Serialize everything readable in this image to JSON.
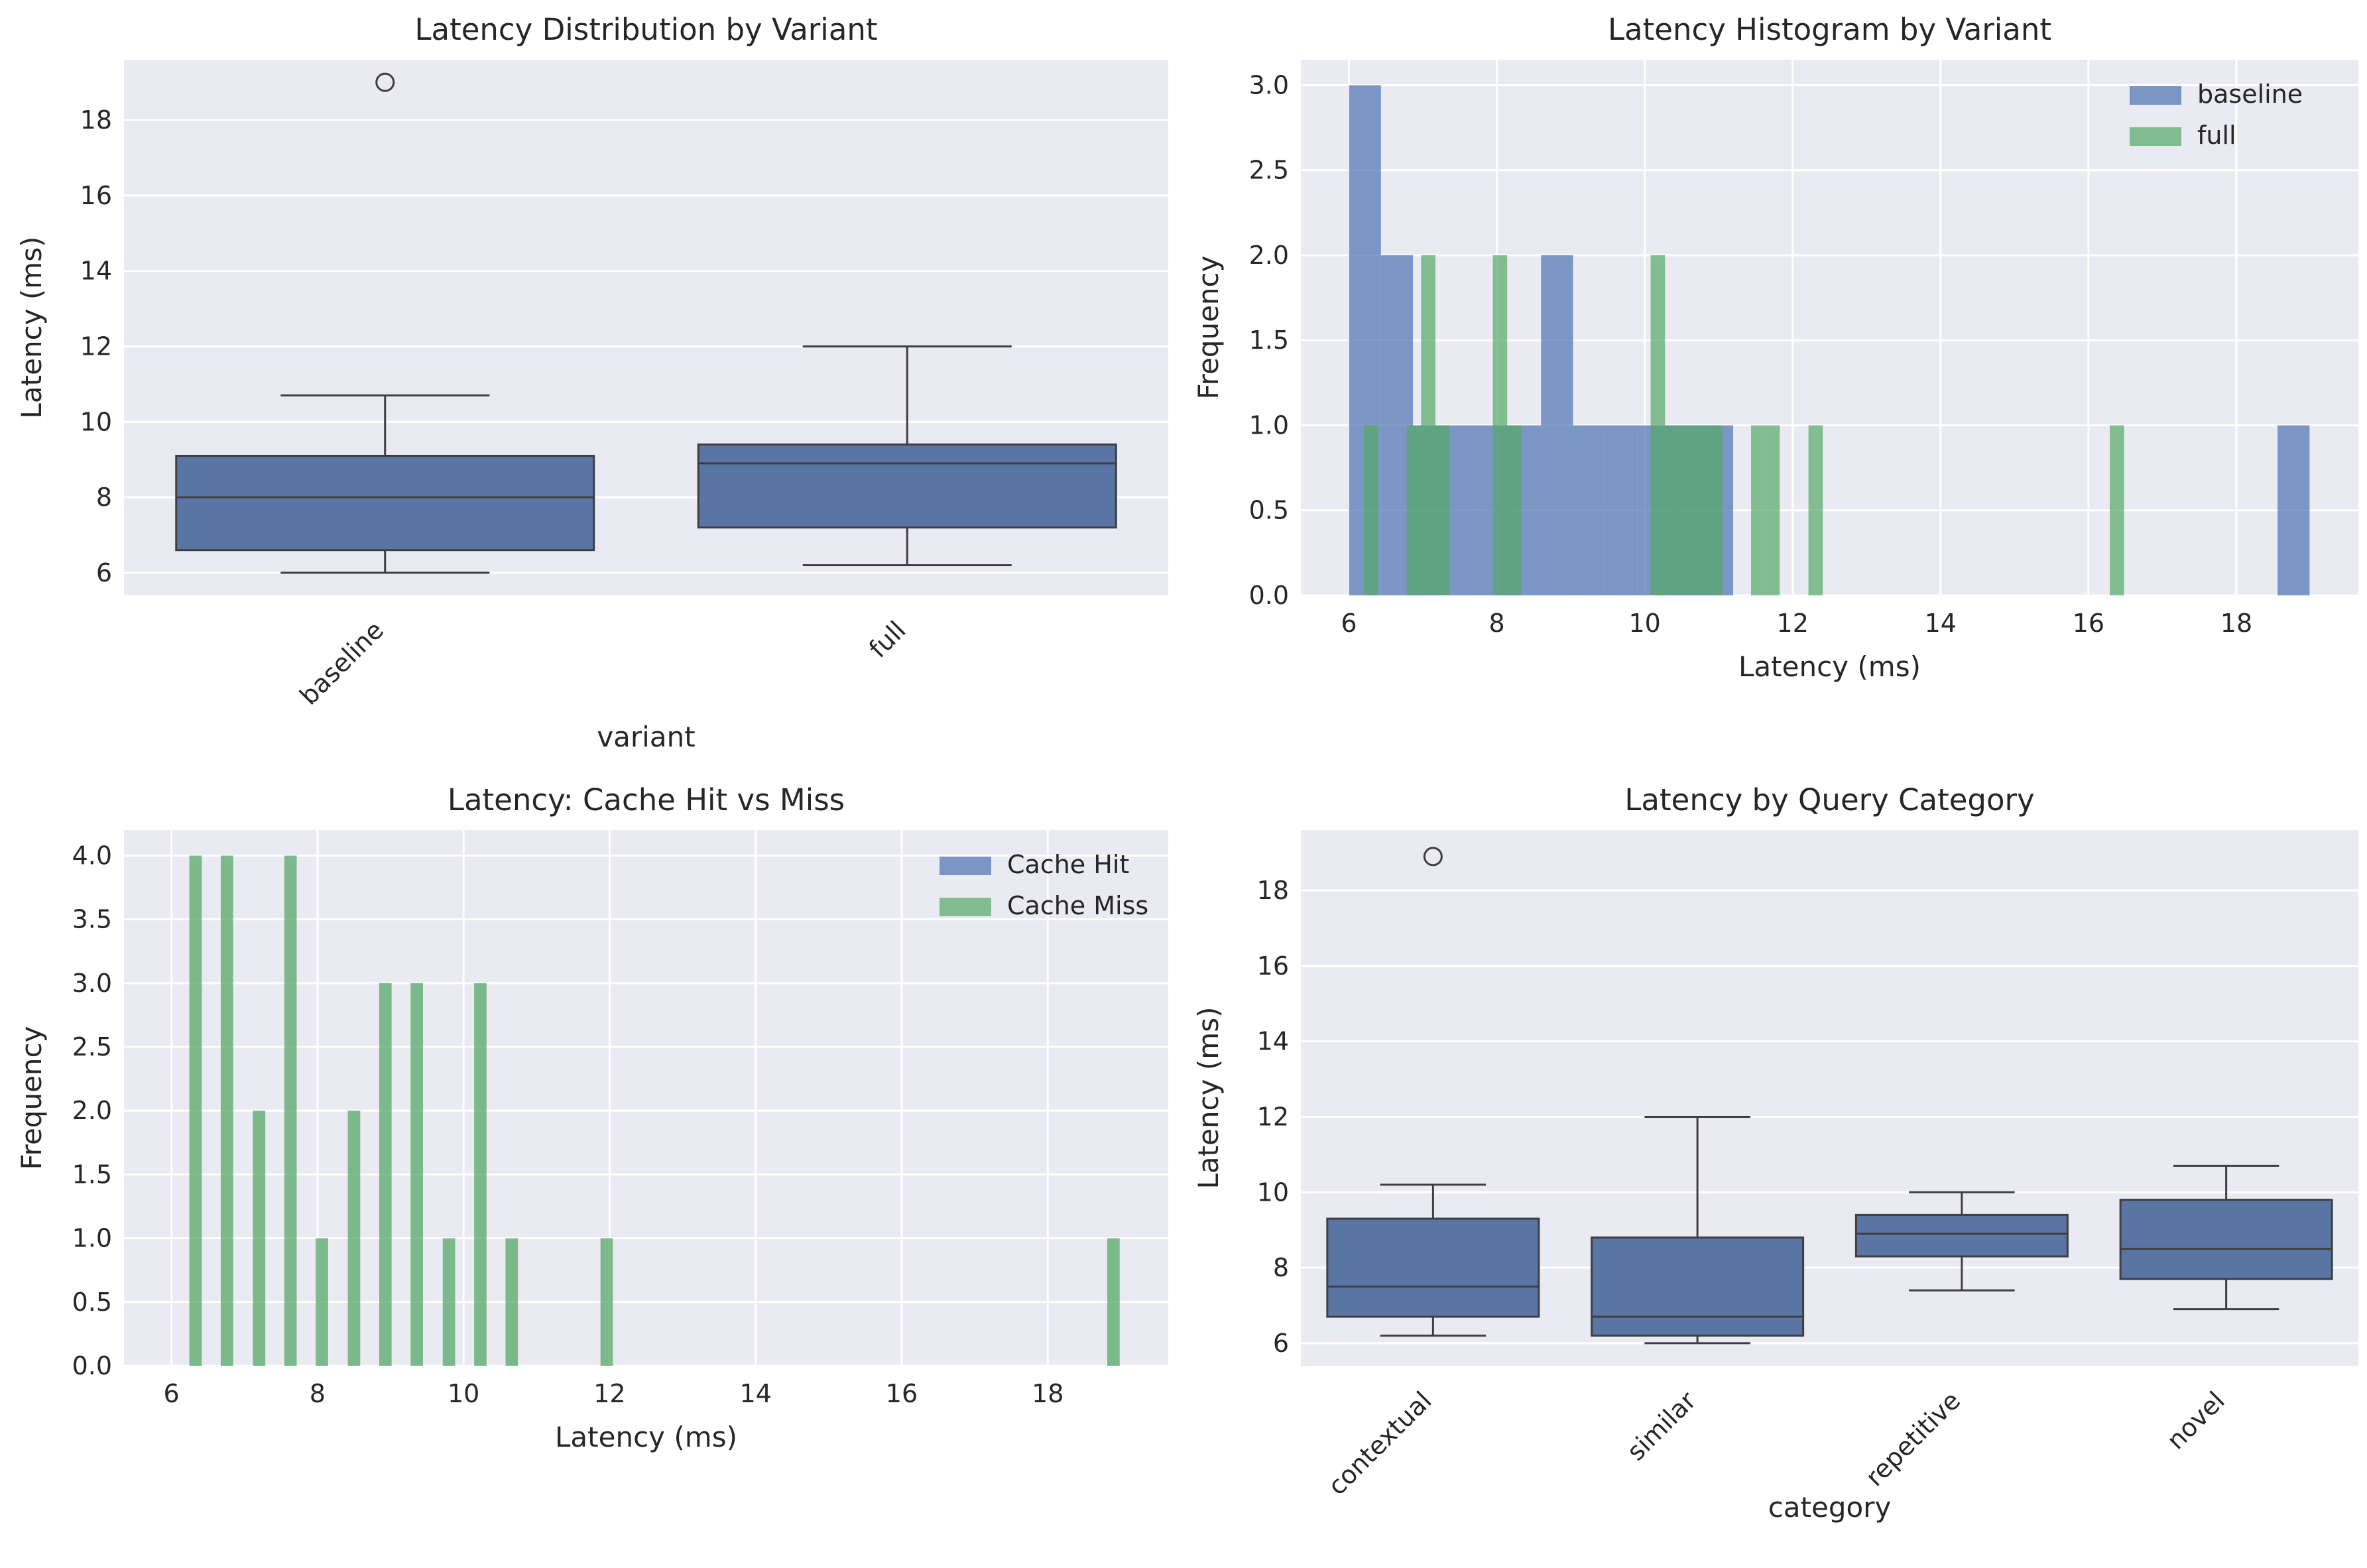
{
  "colors": {
    "panel_bg": "#EAEAF2",
    "grid": "#FFFFFF",
    "blue": "#4C72B0",
    "box_fill": "#5975A4",
    "green": "#55A868",
    "line": "#3F3F3F",
    "text": "#262626"
  },
  "chart_data": [
    {
      "id": "variant-box",
      "type": "box",
      "title": "Latency Distribution by Variant",
      "xlabel": "variant",
      "ylabel": "Latency (ms)",
      "ylim": [
        5.4,
        19.6
      ],
      "yticks": [
        6,
        8,
        10,
        12,
        14,
        16,
        18
      ],
      "grid": true,
      "categories": [
        "baseline",
        "full"
      ],
      "boxes": [
        {
          "whislo": 6.0,
          "q1": 6.6,
          "med": 8.0,
          "q3": 9.1,
          "whishi": 10.7,
          "fliers": [
            19.0
          ]
        },
        {
          "whislo": 6.2,
          "q1": 7.2,
          "med": 8.9,
          "q3": 9.4,
          "whishi": 12.0,
          "fliers": []
        }
      ]
    },
    {
      "id": "variant-hist",
      "type": "histogram",
      "title": "Latency Histogram by Variant",
      "xlabel": "Latency (ms)",
      "ylabel": "Frequency",
      "xlim": [
        5.35,
        19.65
      ],
      "ylim": [
        0,
        3.15
      ],
      "xticks": [
        6,
        8,
        10,
        12,
        14,
        16,
        18
      ],
      "yticks": [
        0.0,
        0.5,
        1.0,
        1.5,
        2.0,
        2.5,
        3.0
      ],
      "grid": true,
      "legend": "upper right",
      "series": [
        {
          "name": "baseline",
          "color": "#4C72B0",
          "bin_start": 6.0,
          "bin_width": 0.433,
          "counts": [
            3,
            2,
            1,
            1,
            1,
            1,
            2,
            1,
            1,
            1,
            1,
            1,
            0,
            0,
            0,
            0,
            0,
            0,
            0,
            0,
            0,
            0,
            0,
            0,
            0,
            0,
            0,
            0,
            0,
            1
          ]
        },
        {
          "name": "full",
          "color": "#55A868",
          "bin_start": 6.2,
          "bin_width": 0.194,
          "counts": [
            1,
            0,
            0,
            1,
            2,
            1,
            0,
            0,
            0,
            2,
            1,
            0,
            0,
            0,
            0,
            0,
            0,
            0,
            0,
            0,
            2,
            1,
            1,
            1,
            1,
            0,
            0,
            1,
            1,
            0,
            0,
            1,
            0,
            0,
            0,
            0,
            0,
            0,
            0,
            0,
            0,
            0,
            0,
            0,
            0,
            0,
            0,
            0,
            0,
            0,
            0,
            0,
            1
          ]
        }
      ]
    },
    {
      "id": "cache-hist",
      "type": "histogram",
      "title": "Latency: Cache Hit vs Miss",
      "xlabel": "Latency (ms)",
      "ylabel": "Frequency",
      "xlim": [
        5.35,
        19.65
      ],
      "ylim": [
        0,
        4.2
      ],
      "xticks": [
        6,
        8,
        10,
        12,
        14,
        16,
        18
      ],
      "yticks": [
        0.0,
        0.5,
        1.0,
        1.5,
        2.0,
        2.5,
        3.0,
        3.5,
        4.0
      ],
      "grid": true,
      "legend": "upper right",
      "series": [
        {
          "name": "Cache Hit",
          "color": "#4C72B0",
          "bars": []
        },
        {
          "name": "Cache Miss",
          "color": "#55A868",
          "bar_width": 0.17,
          "bars": [
            {
              "x": 6.33,
              "y": 4
            },
            {
              "x": 6.76,
              "y": 4
            },
            {
              "x": 7.2,
              "y": 2
            },
            {
              "x": 7.63,
              "y": 4
            },
            {
              "x": 8.06,
              "y": 1
            },
            {
              "x": 8.5,
              "y": 2
            },
            {
              "x": 8.93,
              "y": 3
            },
            {
              "x": 9.36,
              "y": 3
            },
            {
              "x": 9.8,
              "y": 1
            },
            {
              "x": 10.23,
              "y": 3
            },
            {
              "x": 10.66,
              "y": 1
            },
            {
              "x": 11.96,
              "y": 1
            },
            {
              "x": 18.9,
              "y": 1
            }
          ]
        }
      ]
    },
    {
      "id": "category-box",
      "type": "box",
      "title": "Latency by Query Category",
      "xlabel": "category",
      "ylabel": "Latency (ms)",
      "ylim": [
        5.4,
        19.6
      ],
      "yticks": [
        6,
        8,
        10,
        12,
        14,
        16,
        18
      ],
      "grid": true,
      "categories": [
        "contextual",
        "similar",
        "repetitive",
        "novel"
      ],
      "boxes": [
        {
          "whislo": 6.2,
          "q1": 6.7,
          "med": 7.5,
          "q3": 9.3,
          "whishi": 10.2,
          "fliers": [
            18.9
          ]
        },
        {
          "whislo": 6.0,
          "q1": 6.2,
          "med": 6.7,
          "q3": 8.8,
          "whishi": 12.0,
          "fliers": []
        },
        {
          "whislo": 7.4,
          "q1": 8.3,
          "med": 8.9,
          "q3": 9.4,
          "whishi": 10.0,
          "fliers": []
        },
        {
          "whislo": 6.9,
          "q1": 7.7,
          "med": 8.5,
          "q3": 9.8,
          "whishi": 10.7,
          "fliers": []
        }
      ]
    }
  ]
}
